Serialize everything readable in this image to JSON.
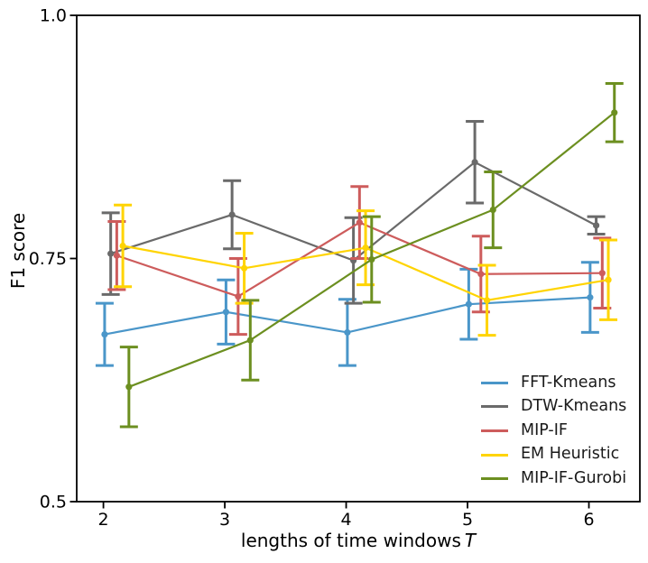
{
  "figure": {
    "background": "#ffffff",
    "axis_color": "#000000"
  },
  "chart_data": {
    "type": "line",
    "title": "",
    "xlabel_prefix": "lengths of time windows",
    "xlabel_var": "T",
    "ylabel": "F1 score",
    "x": [
      2,
      3,
      4,
      5,
      6
    ],
    "xtick_labels": [
      "2",
      "3",
      "4",
      "5",
      "6"
    ],
    "yticks": [
      0.5,
      0.75,
      1.0
    ],
    "ytick_labels": [
      "0.5",
      "0.75",
      "1.0"
    ],
    "xlim": [
      1.78,
      6.42
    ],
    "ylim": [
      0.5,
      1.0
    ],
    "grid": false,
    "error_bars": true,
    "legend_position": "lower right",
    "series": [
      {
        "name": "FFT-Kmeans",
        "color": "#4A96C9",
        "offset": 0.01,
        "values": [
          0.672,
          0.695,
          0.674,
          0.703,
          0.71
        ],
        "errors": [
          0.032,
          0.033,
          0.034,
          0.036,
          0.036
        ]
      },
      {
        "name": "DTW-Kmeans",
        "color": "#6A6A6A",
        "offset": 0.06,
        "values": [
          0.755,
          0.795,
          0.748,
          0.849,
          0.784
        ],
        "errors": [
          0.042,
          0.035,
          0.044,
          0.042,
          0.009
        ]
      },
      {
        "name": "MIP-IF",
        "color": "#CD5C5C",
        "offset": 0.11,
        "values": [
          0.753,
          0.711,
          0.787,
          0.734,
          0.735
        ],
        "errors": [
          0.035,
          0.039,
          0.037,
          0.039,
          0.036
        ]
      },
      {
        "name": "EM Heuristic",
        "color": "#FFD402",
        "offset": 0.16,
        "values": [
          0.763,
          0.74,
          0.761,
          0.707,
          0.728
        ],
        "errors": [
          0.042,
          0.036,
          0.038,
          0.036,
          0.041
        ]
      },
      {
        "name": "MIP-IF-Gurobi",
        "color": "#6C8F20",
        "offset": 0.21,
        "values": [
          0.618,
          0.666,
          0.749,
          0.8,
          0.9
        ],
        "errors": [
          0.041,
          0.041,
          0.044,
          0.039,
          0.03
        ]
      }
    ]
  }
}
